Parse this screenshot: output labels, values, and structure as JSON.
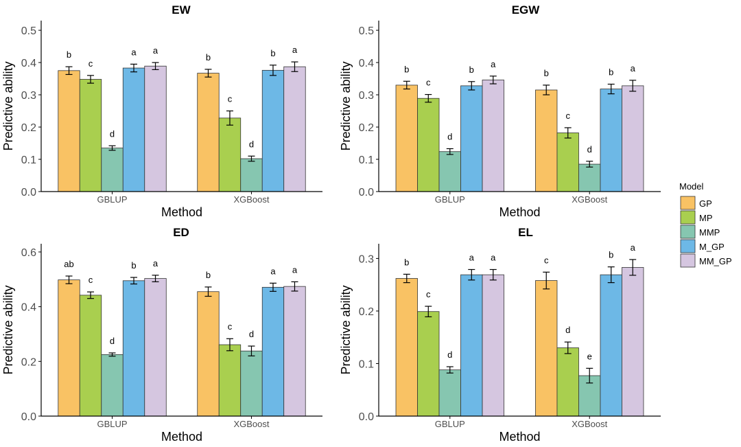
{
  "colors": {
    "GP": "#F9C264",
    "MP": "#A9CF4F",
    "MMP": "#86C6B0",
    "M_GP": "#6DB8E6",
    "MM_GP": "#D5C6E0",
    "axis": "#000000",
    "tick_text": "#4d4d4d"
  },
  "legend": {
    "title": "Model",
    "entries": [
      "GP",
      "MP",
      "MMP",
      "M_GP",
      "MM_GP"
    ]
  },
  "chart_data": [
    {
      "type": "bar",
      "title": "EW",
      "xlabel": "Method",
      "ylabel": "Predictive ability",
      "categories": [
        "GBLUP",
        "XGBoost"
      ],
      "ylim": [
        0,
        0.53
      ],
      "yticks": [
        0.0,
        0.1,
        0.2,
        0.3,
        0.4,
        0.5
      ],
      "ytick_labels": [
        "0.0",
        "0.1",
        "0.2",
        "0.3",
        "0.4",
        "0.5"
      ],
      "series": [
        {
          "name": "GP",
          "values": [
            0.375,
            0.367
          ],
          "errors": [
            0.012,
            0.012
          ],
          "letters": [
            "b",
            "b"
          ]
        },
        {
          "name": "MP",
          "values": [
            0.348,
            0.228
          ],
          "errors": [
            0.012,
            0.022
          ],
          "letters": [
            "c",
            "c"
          ]
        },
        {
          "name": "MMP",
          "values": [
            0.135,
            0.102
          ],
          "errors": [
            0.007,
            0.008
          ],
          "letters": [
            "d",
            "d"
          ]
        },
        {
          "name": "M_GP",
          "values": [
            0.383,
            0.376
          ],
          "errors": [
            0.012,
            0.016
          ],
          "letters": [
            "a",
            "b"
          ]
        },
        {
          "name": "MM_GP",
          "values": [
            0.389,
            0.387
          ],
          "errors": [
            0.011,
            0.015
          ],
          "letters": [
            "a",
            "a"
          ]
        }
      ]
    },
    {
      "type": "bar",
      "title": "EGW",
      "xlabel": "Method",
      "ylabel": "Predictive ability",
      "categories": [
        "GBLUP",
        "XGBoost"
      ],
      "ylim": [
        0,
        0.53
      ],
      "yticks": [
        0.0,
        0.1,
        0.2,
        0.3,
        0.4,
        0.5
      ],
      "ytick_labels": [
        "0.0",
        "0.1",
        "0.2",
        "0.3",
        "0.4",
        "0.5"
      ],
      "series": [
        {
          "name": "GP",
          "values": [
            0.33,
            0.315
          ],
          "errors": [
            0.012,
            0.015
          ],
          "letters": [
            "b",
            "b"
          ]
        },
        {
          "name": "MP",
          "values": [
            0.289,
            0.182
          ],
          "errors": [
            0.012,
            0.016
          ],
          "letters": [
            "c",
            "c"
          ]
        },
        {
          "name": "MMP",
          "values": [
            0.124,
            0.085
          ],
          "errors": [
            0.009,
            0.009
          ],
          "letters": [
            "d",
            "d"
          ]
        },
        {
          "name": "M_GP",
          "values": [
            0.328,
            0.318
          ],
          "errors": [
            0.013,
            0.015
          ],
          "letters": [
            "b",
            "b"
          ]
        },
        {
          "name": "MM_GP",
          "values": [
            0.346,
            0.328
          ],
          "errors": [
            0.012,
            0.017
          ],
          "letters": [
            "a",
            "a"
          ]
        }
      ]
    },
    {
      "type": "bar",
      "title": "ED",
      "xlabel": "Method",
      "ylabel": "Predictive ability",
      "categories": [
        "GBLUP",
        "XGBoost"
      ],
      "ylim": [
        0,
        0.63
      ],
      "yticks": [
        0.0,
        0.2,
        0.4,
        0.6
      ],
      "ytick_labels": [
        "0.0",
        "0.2",
        "0.4",
        "0.6"
      ],
      "series": [
        {
          "name": "GP",
          "values": [
            0.498,
            0.455
          ],
          "errors": [
            0.014,
            0.017
          ],
          "letters": [
            "ab",
            "b"
          ]
        },
        {
          "name": "MP",
          "values": [
            0.442,
            0.261
          ],
          "errors": [
            0.012,
            0.022
          ],
          "letters": [
            "c",
            "c"
          ]
        },
        {
          "name": "MMP",
          "values": [
            0.225,
            0.238
          ],
          "errors": [
            0.006,
            0.018
          ],
          "letters": [
            "d",
            "d"
          ]
        },
        {
          "name": "M_GP",
          "values": [
            0.495,
            0.471
          ],
          "errors": [
            0.012,
            0.015
          ],
          "letters": [
            "b",
            "a"
          ]
        },
        {
          "name": "MM_GP",
          "values": [
            0.503,
            0.474
          ],
          "errors": [
            0.012,
            0.017
          ],
          "letters": [
            "a",
            "a"
          ]
        }
      ]
    },
    {
      "type": "bar",
      "title": "EL",
      "xlabel": "Method",
      "ylabel": "Predictive ability",
      "categories": [
        "GBLUP",
        "XGBoost"
      ],
      "ylim": [
        0,
        0.328
      ],
      "yticks": [
        0.0,
        0.1,
        0.2,
        0.3
      ],
      "ytick_labels": [
        "0.0",
        "0.1",
        "0.2",
        "0.3"
      ],
      "series": [
        {
          "name": "GP",
          "values": [
            0.262,
            0.258
          ],
          "errors": [
            0.008,
            0.016
          ],
          "letters": [
            "b",
            "c"
          ]
        },
        {
          "name": "MP",
          "values": [
            0.199,
            0.13
          ],
          "errors": [
            0.01,
            0.011
          ],
          "letters": [
            "c",
            "d"
          ]
        },
        {
          "name": "MMP",
          "values": [
            0.088,
            0.077
          ],
          "errors": [
            0.006,
            0.014
          ],
          "letters": [
            "d",
            "e"
          ]
        },
        {
          "name": "M_GP",
          "values": [
            0.269,
            0.269
          ],
          "errors": [
            0.01,
            0.015
          ],
          "letters": [
            "a",
            "b"
          ]
        },
        {
          "name": "MM_GP",
          "values": [
            0.269,
            0.283
          ],
          "errors": [
            0.01,
            0.015
          ],
          "letters": [
            "a",
            "a"
          ]
        }
      ]
    }
  ]
}
